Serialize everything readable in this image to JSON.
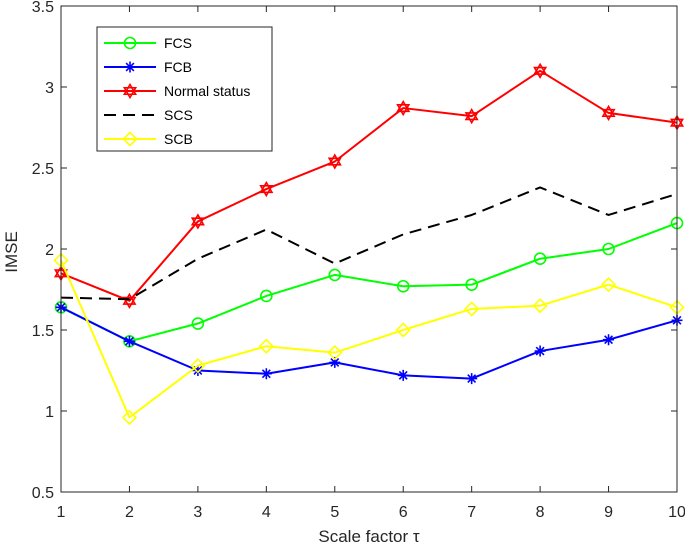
{
  "chart_data": {
    "type": "line",
    "title": "",
    "xlabel": "Scale factor τ",
    "ylabel": "IMSE",
    "xlim": [
      1,
      10
    ],
    "ylim": [
      0.5,
      3.5
    ],
    "xticks": [
      1,
      2,
      3,
      4,
      5,
      6,
      7,
      8,
      9,
      10
    ],
    "yticks": [
      0.5,
      1,
      1.5,
      2,
      2.5,
      3,
      3.5
    ],
    "ytick_labels": [
      "0.5",
      "1",
      "1.5",
      "2",
      "2.5",
      "3",
      "3.5"
    ],
    "grid": false,
    "legend_position": "top-left",
    "x": [
      1,
      2,
      3,
      4,
      5,
      6,
      7,
      8,
      9,
      10
    ],
    "series": [
      {
        "name": "FCS",
        "color": "#00ff00",
        "line_style": "solid",
        "marker": "circle",
        "values": [
          1.64,
          1.43,
          1.54,
          1.71,
          1.84,
          1.77,
          1.78,
          1.94,
          2.0,
          2.16
        ]
      },
      {
        "name": "FCB",
        "color": "#0000ff",
        "line_style": "solid",
        "marker": "asterisk",
        "values": [
          1.64,
          1.43,
          1.25,
          1.23,
          1.3,
          1.22,
          1.2,
          1.37,
          1.44,
          1.56
        ]
      },
      {
        "name": "Normal status",
        "color": "#ff0000",
        "line_style": "solid",
        "marker": "hexagram",
        "values": [
          1.85,
          1.68,
          2.17,
          2.37,
          2.54,
          2.87,
          2.82,
          3.1,
          2.84,
          2.78
        ]
      },
      {
        "name": "SCS",
        "color": "#000000",
        "line_style": "dashed",
        "marker": "none",
        "values": [
          1.7,
          1.69,
          1.94,
          2.12,
          1.91,
          2.09,
          2.21,
          2.38,
          2.21,
          2.34
        ]
      },
      {
        "name": "SCB",
        "color": "#ffff00",
        "line_style": "solid",
        "marker": "diamond",
        "values": [
          1.93,
          0.96,
          1.28,
          1.4,
          1.36,
          1.5,
          1.63,
          1.65,
          1.78,
          1.64
        ]
      }
    ]
  }
}
